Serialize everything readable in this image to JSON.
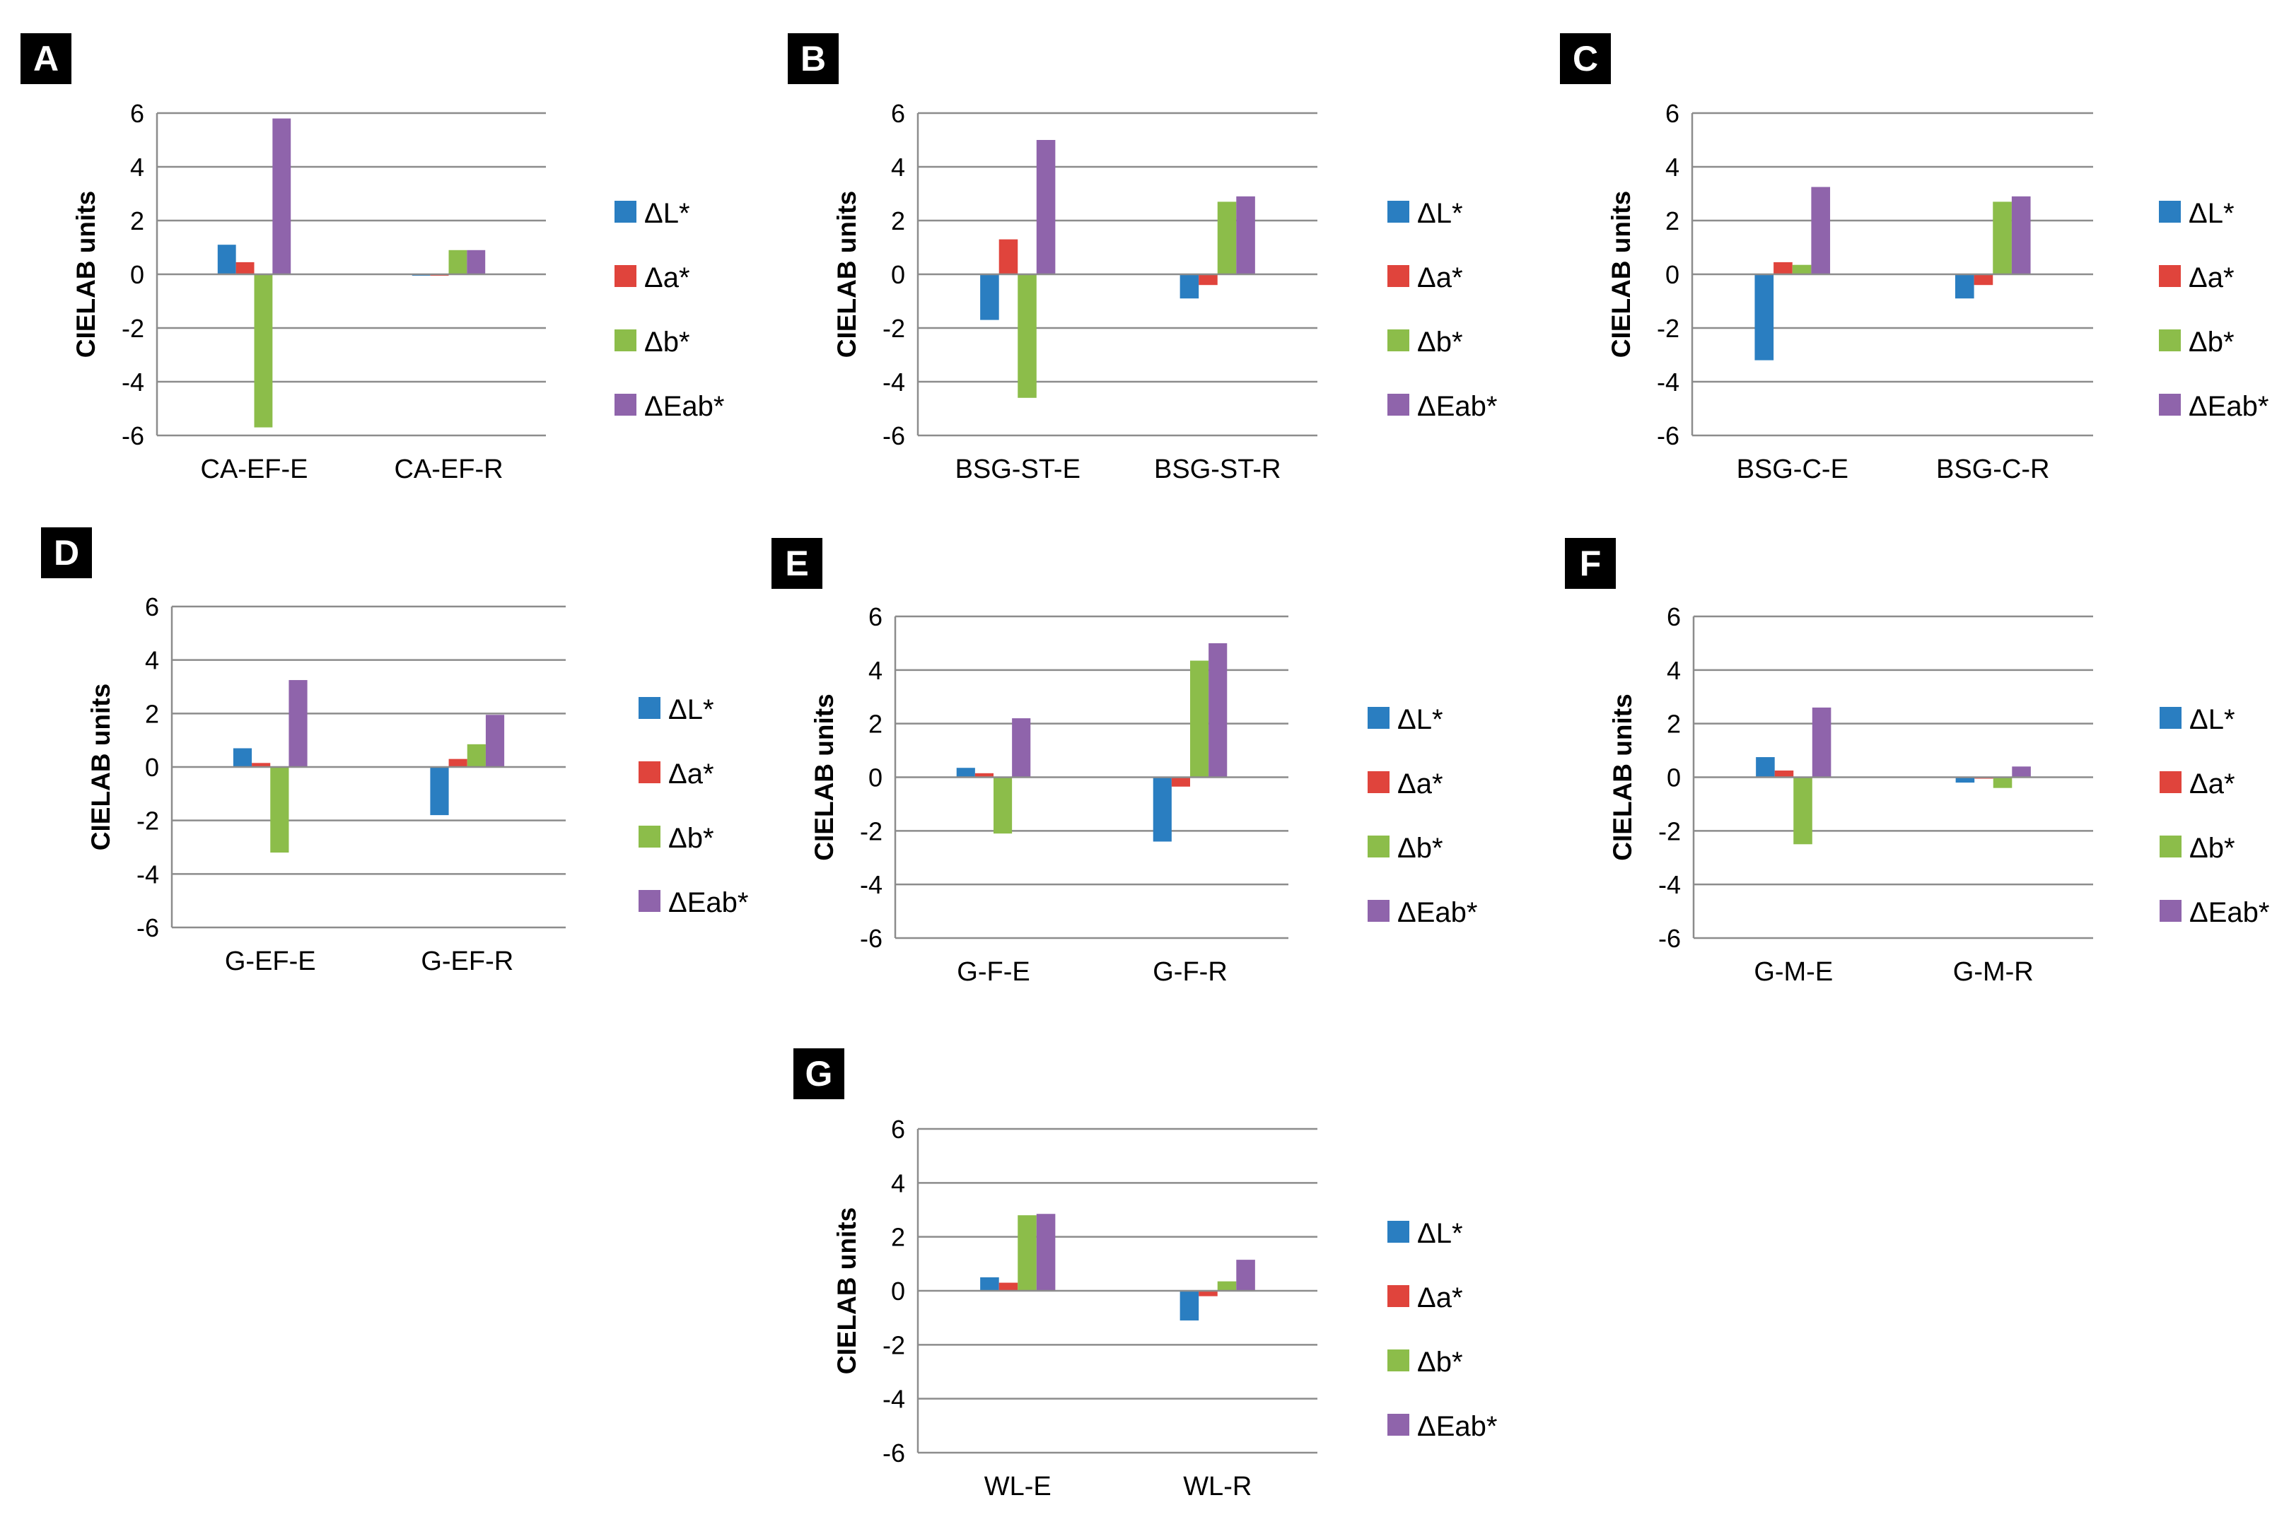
{
  "figure": {
    "ylabel": "CIELAB units",
    "legend": [
      "ΔL*",
      "Δa*",
      "Δb*",
      "ΔEab*"
    ],
    "series_colors": [
      "#2a7ec1",
      "#e0443c",
      "#8cbd4a",
      "#8f64ab"
    ],
    "y_ticks": [
      "6",
      "4",
      "2",
      "0",
      "-2",
      "-4",
      "-6"
    ]
  },
  "chart_data": [
    {
      "type": "bar",
      "panel": "A",
      "categories": [
        "CA-EF-E",
        "CA-EF-R"
      ],
      "series": [
        {
          "name": "ΔL*",
          "values": [
            1.1,
            -0.05
          ]
        },
        {
          "name": "Δa*",
          "values": [
            0.45,
            0.0
          ]
        },
        {
          "name": "Δb*",
          "values": [
            -5.7,
            0.9
          ]
        },
        {
          "name": "ΔEab*",
          "values": [
            5.8,
            0.9
          ]
        }
      ],
      "ylabel": "CIELAB units",
      "ylim": [
        -6,
        6
      ],
      "legend_position": "right",
      "grid": true
    },
    {
      "type": "bar",
      "panel": "B",
      "categories": [
        "BSG-ST-E",
        "BSG-ST-R"
      ],
      "series": [
        {
          "name": "ΔL*",
          "values": [
            -1.7,
            -0.9
          ]
        },
        {
          "name": "Δa*",
          "values": [
            1.3,
            -0.4
          ]
        },
        {
          "name": "Δb*",
          "values": [
            -4.6,
            2.7
          ]
        },
        {
          "name": "ΔEab*",
          "values": [
            5.0,
            2.9
          ]
        }
      ],
      "ylabel": "CIELAB units",
      "ylim": [
        -6,
        6
      ],
      "legend_position": "right",
      "grid": true
    },
    {
      "type": "bar",
      "panel": "C",
      "categories": [
        "BSG-C-E",
        "BSG-C-R"
      ],
      "series": [
        {
          "name": "ΔL*",
          "values": [
            -3.2,
            -0.9
          ]
        },
        {
          "name": "Δa*",
          "values": [
            0.45,
            -0.4
          ]
        },
        {
          "name": "Δb*",
          "values": [
            0.35,
            2.7
          ]
        },
        {
          "name": "ΔEab*",
          "values": [
            3.25,
            2.9
          ]
        }
      ],
      "ylabel": "CIELAB units",
      "ylim": [
        -6,
        6
      ],
      "legend_position": "right",
      "grid": true
    },
    {
      "type": "bar",
      "panel": "D",
      "categories": [
        "G-EF-E",
        "G-EF-R"
      ],
      "series": [
        {
          "name": "ΔL*",
          "values": [
            0.7,
            -1.8
          ]
        },
        {
          "name": "Δa*",
          "values": [
            0.15,
            0.3
          ]
        },
        {
          "name": "Δb*",
          "values": [
            -3.2,
            0.85
          ]
        },
        {
          "name": "ΔEab*",
          "values": [
            3.25,
            1.95
          ]
        }
      ],
      "ylabel": "CIELAB units",
      "ylim": [
        -6,
        6
      ],
      "legend_position": "right",
      "grid": true
    },
    {
      "type": "bar",
      "panel": "E",
      "categories": [
        "G-F-E",
        "G-F-R"
      ],
      "series": [
        {
          "name": "ΔL*",
          "values": [
            0.35,
            -2.4
          ]
        },
        {
          "name": "Δa*",
          "values": [
            0.15,
            -0.35
          ]
        },
        {
          "name": "Δb*",
          "values": [
            -2.1,
            4.35
          ]
        },
        {
          "name": "ΔEab*",
          "values": [
            2.2,
            5.0
          ]
        }
      ],
      "ylabel": "CIELAB units",
      "ylim": [
        -6,
        6
      ],
      "legend_position": "right",
      "grid": true
    },
    {
      "type": "bar",
      "panel": "F",
      "categories": [
        "G-M-E",
        "G-M-R"
      ],
      "series": [
        {
          "name": "ΔL*",
          "values": [
            0.75,
            -0.2
          ]
        },
        {
          "name": "Δa*",
          "values": [
            0.25,
            -0.05
          ]
        },
        {
          "name": "Δb*",
          "values": [
            -2.5,
            -0.4
          ]
        },
        {
          "name": "ΔEab*",
          "values": [
            2.6,
            0.4
          ]
        }
      ],
      "ylabel": "CIELAB units",
      "ylim": [
        -6,
        6
      ],
      "legend_position": "right",
      "grid": true
    },
    {
      "type": "bar",
      "panel": "G",
      "categories": [
        "WL-E",
        "WL-R"
      ],
      "series": [
        {
          "name": "ΔL*",
          "values": [
            0.5,
            -1.1
          ]
        },
        {
          "name": "Δa*",
          "values": [
            0.3,
            -0.2
          ]
        },
        {
          "name": "Δb*",
          "values": [
            2.8,
            0.35
          ]
        },
        {
          "name": "ΔEab*",
          "values": [
            2.85,
            1.15
          ]
        }
      ],
      "ylabel": "CIELAB units",
      "ylim": [
        -6,
        6
      ],
      "legend_position": "right",
      "grid": true
    }
  ]
}
